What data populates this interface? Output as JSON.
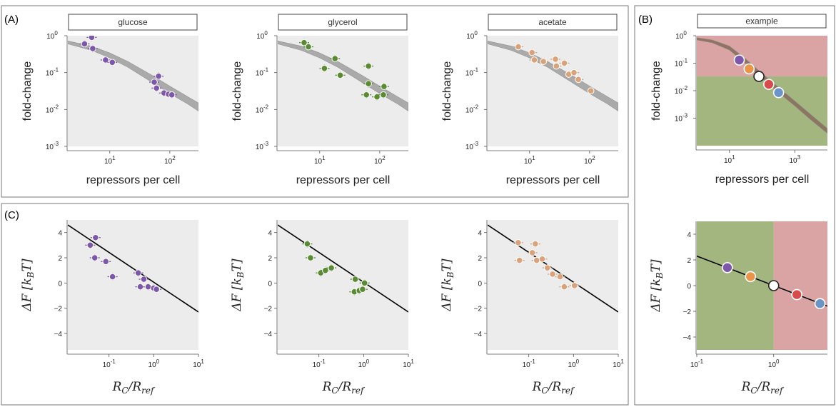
{
  "panel_labels": {
    "A": "(A)",
    "B": "(B)",
    "C": "(C)"
  },
  "colors": {
    "background": "#ececec",
    "glucose": "#7e58a8",
    "glycerol": "#5a8a33",
    "acetate": "#d7a27c",
    "theory_band": "#a3a3a3",
    "line": "#000000",
    "region_red": "#d9a0a0",
    "region_green": "#9fb37a",
    "example_points": [
      "#7e58a8",
      "#e8944a",
      "#ffffff",
      "#d64b4b",
      "#6c94c7"
    ]
  },
  "chart_data": [
    {
      "id": "A-glucose",
      "type": "scatter",
      "title": "glucose",
      "xlabel": "repressors per cell",
      "ylabel": "fold-change",
      "xscale": "log",
      "yscale": "log",
      "xlim": [
        2,
        300
      ],
      "ylim": [
        0.001,
        1
      ],
      "xticks": [
        {
          "v": 10,
          "b": "10",
          "e": "1"
        },
        {
          "v": 100,
          "b": "10",
          "e": "2"
        }
      ],
      "yticks": [
        {
          "v": 0.001,
          "b": "10",
          "e": "-3"
        },
        {
          "v": 0.01,
          "b": "10",
          "e": "-2"
        },
        {
          "v": 0.1,
          "b": "10",
          "e": "-1"
        },
        {
          "v": 1,
          "b": "10",
          "e": "0"
        }
      ],
      "theory_band": {
        "x": [
          2,
          5,
          10,
          20,
          50,
          100,
          200,
          300
        ],
        "low": [
          0.6,
          0.4,
          0.25,
          0.14,
          0.055,
          0.027,
          0.014,
          0.009
        ],
        "high": [
          0.72,
          0.52,
          0.34,
          0.2,
          0.085,
          0.043,
          0.022,
          0.015
        ]
      },
      "series": [
        {
          "color": "glucose",
          "points": [
            {
              "x": 3.8,
              "y": 0.6
            },
            {
              "x": 5,
              "y": 0.9
            },
            {
              "x": 5.2,
              "y": 0.45
            },
            {
              "x": 8.5,
              "y": 0.22
            },
            {
              "x": 11,
              "y": 0.19
            },
            {
              "x": 55,
              "y": 0.055
            },
            {
              "x": 65,
              "y": 0.08
            },
            {
              "x": 60,
              "y": 0.038
            },
            {
              "x": 80,
              "y": 0.028
            },
            {
              "x": 95,
              "y": 0.026
            },
            {
              "x": 108,
              "y": 0.025
            }
          ]
        }
      ]
    },
    {
      "id": "A-glycerol",
      "type": "scatter",
      "title": "glycerol",
      "xlabel": "repressors per cell",
      "ylabel": "fold-change",
      "xscale": "log",
      "yscale": "log",
      "xlim": [
        2,
        300
      ],
      "ylim": [
        0.001,
        1
      ],
      "xticks": [
        {
          "v": 10,
          "b": "10",
          "e": "1"
        },
        {
          "v": 100,
          "b": "10",
          "e": "2"
        }
      ],
      "yticks": [
        {
          "v": 0.001,
          "b": "10",
          "e": "-3"
        },
        {
          "v": 0.01,
          "b": "10",
          "e": "-2"
        },
        {
          "v": 0.1,
          "b": "10",
          "e": "-1"
        },
        {
          "v": 1,
          "b": "10",
          "e": "0"
        }
      ],
      "theory_band": {
        "x": [
          2,
          5,
          10,
          20,
          50,
          100,
          200,
          300
        ],
        "low": [
          0.6,
          0.4,
          0.25,
          0.14,
          0.055,
          0.027,
          0.014,
          0.009
        ],
        "high": [
          0.72,
          0.52,
          0.34,
          0.2,
          0.085,
          0.043,
          0.022,
          0.015
        ]
      },
      "series": [
        {
          "color": "glycerol",
          "points": [
            {
              "x": 5.5,
              "y": 0.65
            },
            {
              "x": 6.5,
              "y": 0.5
            },
            {
              "x": 12,
              "y": 0.13
            },
            {
              "x": 18,
              "y": 0.24
            },
            {
              "x": 22,
              "y": 0.085
            },
            {
              "x": 65,
              "y": 0.15
            },
            {
              "x": 65,
              "y": 0.05
            },
            {
              "x": 60,
              "y": 0.025
            },
            {
              "x": 90,
              "y": 0.022
            },
            {
              "x": 115,
              "y": 0.025
            },
            {
              "x": 118,
              "y": 0.042
            }
          ]
        }
      ]
    },
    {
      "id": "A-acetate",
      "type": "scatter",
      "title": "acetate",
      "xlabel": "repressors per cell",
      "ylabel": "fold-change",
      "xscale": "log",
      "yscale": "log",
      "xlim": [
        2,
        300
      ],
      "ylim": [
        0.001,
        1
      ],
      "xticks": [
        {
          "v": 10,
          "b": "10",
          "e": "1"
        },
        {
          "v": 100,
          "b": "10",
          "e": "2"
        }
      ],
      "yticks": [
        {
          "v": 0.001,
          "b": "10",
          "e": "-3"
        },
        {
          "v": 0.01,
          "b": "10",
          "e": "-2"
        },
        {
          "v": 0.1,
          "b": "10",
          "e": "-1"
        },
        {
          "v": 1,
          "b": "10",
          "e": "0"
        }
      ],
      "theory_band": {
        "x": [
          2,
          5,
          10,
          20,
          50,
          100,
          200,
          300
        ],
        "low": [
          0.6,
          0.4,
          0.25,
          0.14,
          0.055,
          0.027,
          0.014,
          0.009
        ],
        "high": [
          0.72,
          0.52,
          0.34,
          0.2,
          0.085,
          0.043,
          0.022,
          0.015
        ]
      },
      "series": [
        {
          "color": "acetate",
          "points": [
            {
              "x": 6.5,
              "y": 0.5
            },
            {
              "x": 11,
              "y": 0.35
            },
            {
              "x": 12,
              "y": 0.22
            },
            {
              "x": 17,
              "y": 0.2
            },
            {
              "x": 27,
              "y": 0.23
            },
            {
              "x": 28,
              "y": 0.15
            },
            {
              "x": 38,
              "y": 0.18
            },
            {
              "x": 45,
              "y": 0.09
            },
            {
              "x": 55,
              "y": 0.1
            },
            {
              "x": 65,
              "y": 0.065
            },
            {
              "x": 105,
              "y": 0.032
            }
          ]
        }
      ]
    },
    {
      "id": "C-glucose",
      "type": "scatter",
      "xlabel": "RC/Rref",
      "ylabel": "ΔF [kBT]",
      "xscale": "log",
      "yscale": "linear",
      "xlim": [
        0.012,
        10
      ],
      "ylim": [
        -5.3,
        5
      ],
      "xticks": [
        {
          "v": 0.1,
          "b": "10",
          "e": "-1"
        },
        {
          "v": 1,
          "b": "10",
          "e": "0"
        },
        {
          "v": 10,
          "b": "10",
          "e": "1"
        }
      ],
      "yticks": [
        {
          "v": -4,
          "t": "−4"
        },
        {
          "v": -2,
          "t": "−2"
        },
        {
          "v": 0,
          "t": "0"
        },
        {
          "v": 2,
          "t": "2"
        },
        {
          "v": 4,
          "t": "4"
        }
      ],
      "line": {
        "x": [
          0.012,
          10
        ],
        "y": [
          4.6,
          -2.3
        ]
      },
      "series": [
        {
          "color": "glucose",
          "points": [
            {
              "x": 0.038,
              "y": 3.0
            },
            {
              "x": 0.05,
              "y": 3.6
            },
            {
              "x": 0.048,
              "y": 2.0
            },
            {
              "x": 0.085,
              "y": 1.7
            },
            {
              "x": 0.12,
              "y": 0.5
            },
            {
              "x": 0.45,
              "y": 0.8
            },
            {
              "x": 0.6,
              "y": 0.3
            },
            {
              "x": 0.5,
              "y": -0.3
            },
            {
              "x": 0.75,
              "y": -0.3
            },
            {
              "x": 1.0,
              "y": -0.4
            },
            {
              "x": 1.15,
              "y": -0.5
            }
          ]
        }
      ]
    },
    {
      "id": "C-glycerol",
      "type": "scatter",
      "xlabel": "RC/Rref",
      "ylabel": "ΔF [kBT]",
      "xscale": "log",
      "yscale": "linear",
      "xlim": [
        0.012,
        10
      ],
      "ylim": [
        -5.3,
        5
      ],
      "xticks": [
        {
          "v": 0.1,
          "b": "10",
          "e": "-1"
        },
        {
          "v": 1,
          "b": "10",
          "e": "0"
        },
        {
          "v": 10,
          "b": "10",
          "e": "1"
        }
      ],
      "yticks": [
        {
          "v": -4,
          "t": "−4"
        },
        {
          "v": -2,
          "t": "−2"
        },
        {
          "v": 0,
          "t": "0"
        },
        {
          "v": 2,
          "t": "2"
        },
        {
          "v": 4,
          "t": "4"
        }
      ],
      "line": {
        "x": [
          0.012,
          10
        ],
        "y": [
          4.6,
          -2.3
        ]
      },
      "series": [
        {
          "color": "glycerol",
          "points": [
            {
              "x": 0.055,
              "y": 3.1
            },
            {
              "x": 0.065,
              "y": 2.0
            },
            {
              "x": 0.11,
              "y": 0.8
            },
            {
              "x": 0.14,
              "y": 1.0
            },
            {
              "x": 0.19,
              "y": 1.2
            },
            {
              "x": 0.65,
              "y": 0.3
            },
            {
              "x": 1.05,
              "y": 0.0
            },
            {
              "x": 0.62,
              "y": -0.7
            },
            {
              "x": 0.8,
              "y": -0.6
            },
            {
              "x": 0.95,
              "y": -0.5
            }
          ]
        }
      ]
    },
    {
      "id": "C-acetate",
      "type": "scatter",
      "xlabel": "RC/Rref",
      "ylabel": "ΔF [kBT]",
      "xscale": "log",
      "yscale": "linear",
      "xlim": [
        0.012,
        10
      ],
      "ylim": [
        -5.3,
        5
      ],
      "xticks": [
        {
          "v": 0.1,
          "b": "10",
          "e": "-1"
        },
        {
          "v": 1,
          "b": "10",
          "e": "0"
        },
        {
          "v": 10,
          "b": "10",
          "e": "1"
        }
      ],
      "yticks": [
        {
          "v": -4,
          "t": "−4"
        },
        {
          "v": -2,
          "t": "−2"
        },
        {
          "v": 0,
          "t": "0"
        },
        {
          "v": 2,
          "t": "2"
        },
        {
          "v": 4,
          "t": "4"
        }
      ],
      "line": {
        "x": [
          0.012,
          10
        ],
        "y": [
          4.6,
          -2.3
        ]
      },
      "series": [
        {
          "color": "acetate",
          "points": [
            {
              "x": 0.058,
              "y": 3.2
            },
            {
              "x": 0.062,
              "y": 1.8
            },
            {
              "x": 0.12,
              "y": 2.4
            },
            {
              "x": 0.14,
              "y": 3.1
            },
            {
              "x": 0.15,
              "y": 1.8
            },
            {
              "x": 0.2,
              "y": 1.9
            },
            {
              "x": 0.26,
              "y": 1.2
            },
            {
              "x": 0.34,
              "y": 0.7
            },
            {
              "x": 0.5,
              "y": 0.5
            },
            {
              "x": 0.62,
              "y": -0.3
            },
            {
              "x": 1.05,
              "y": -0.2
            }
          ]
        }
      ]
    },
    {
      "id": "B-example-fc",
      "type": "scatter",
      "title": "example",
      "xlabel": "repressors per cell",
      "ylabel": "fold-change",
      "xscale": "log",
      "yscale": "log",
      "xlim": [
        1,
        10000
      ],
      "ylim": [
        0.0001,
        1
      ],
      "xticks": [
        {
          "v": 10,
          "b": "10",
          "e": "1"
        },
        {
          "v": 1000,
          "b": "10",
          "e": "3"
        }
      ],
      "yticks": [
        {
          "v": 0.001,
          "b": "10",
          "e": "-3"
        },
        {
          "v": 0.01,
          "b": "10",
          "e": "-2"
        },
        {
          "v": 0.1,
          "b": "10",
          "e": "-1"
        },
        {
          "v": 1,
          "b": "10",
          "e": "0"
        }
      ],
      "regions": [
        {
          "color": "region_red",
          "y": [
            0.033,
            1
          ]
        },
        {
          "color": "region_green",
          "y": [
            0.0001,
            0.033
          ]
        }
      ],
      "theory_band": {
        "x": [
          1,
          3,
          10,
          30,
          100,
          300,
          1000,
          3000,
          10000
        ],
        "low": [
          0.7,
          0.55,
          0.3,
          0.1,
          0.028,
          0.009,
          0.0028,
          0.0009,
          0.00028
        ],
        "high": [
          0.85,
          0.7,
          0.42,
          0.15,
          0.042,
          0.014,
          0.0042,
          0.0014,
          0.00042
        ]
      },
      "series": [
        {
          "color": "examples",
          "points": [
            {
              "x": 20,
              "y": 0.13
            },
            {
              "x": 40,
              "y": 0.062
            },
            {
              "x": 80,
              "y": 0.033
            },
            {
              "x": 160,
              "y": 0.017
            },
            {
              "x": 320,
              "y": 0.0085
            }
          ]
        }
      ]
    },
    {
      "id": "B-example-dF",
      "type": "scatter",
      "xlabel": "RC/Rref",
      "ylabel": "ΔF [kBT]",
      "xscale": "log",
      "yscale": "linear",
      "xlim": [
        0.1,
        5
      ],
      "ylim": [
        -5,
        5
      ],
      "xticks": [
        {
          "v": 0.1,
          "b": "10",
          "e": "-1"
        },
        {
          "v": 1,
          "b": "10",
          "e": "0"
        }
      ],
      "yticks": [
        {
          "v": -4,
          "t": "−4"
        },
        {
          "v": -2,
          "t": "−2"
        },
        {
          "v": 0,
          "t": "0"
        },
        {
          "v": 2,
          "t": "2"
        },
        {
          "v": 4,
          "t": "4"
        }
      ],
      "regions": [
        {
          "color": "region_green",
          "x": [
            0.1,
            1
          ]
        },
        {
          "color": "region_red",
          "x": [
            1,
            5
          ]
        }
      ],
      "line": {
        "x": [
          0.1,
          5
        ],
        "y": [
          2.3,
          -1.6
        ]
      },
      "series": [
        {
          "color": "examples",
          "points": [
            {
              "x": 0.25,
              "y": 1.4
            },
            {
              "x": 0.5,
              "y": 0.7
            },
            {
              "x": 1.0,
              "y": 0.0
            },
            {
              "x": 2.0,
              "y": -0.7
            },
            {
              "x": 4.0,
              "y": -1.4
            }
          ]
        }
      ]
    }
  ]
}
